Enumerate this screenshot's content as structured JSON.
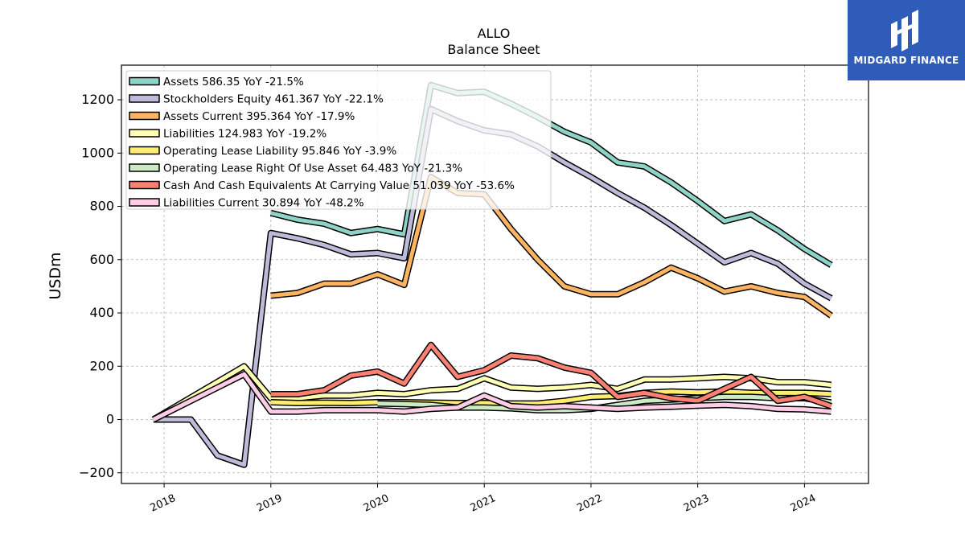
{
  "chart_data": {
    "type": "line",
    "title": "ALLO",
    "subtitle": "Balance  Sheet",
    "xlabel": "",
    "ylabel": "USDm",
    "ylim": [
      -240,
      1330
    ],
    "xlim": [
      2017.6,
      2024.6
    ],
    "yticks": [
      -200,
      0,
      200,
      400,
      600,
      800,
      1000,
      1200
    ],
    "ytick_labels": [
      "−200",
      "0",
      "200",
      "400",
      "600",
      "800",
      "1000",
      "1200"
    ],
    "xticks": [
      2018,
      2019,
      2020,
      2021,
      2022,
      2023,
      2024
    ],
    "xtick_labels": [
      "2018",
      "2019",
      "2020",
      "2021",
      "2022",
      "2023",
      "2024"
    ],
    "grid": true,
    "legend_position": "top-left",
    "series": [
      {
        "name": "Assets  586.35 YoY -21.5%",
        "color": "#8dd3c7",
        "points": [
          [
            2019.0,
            775
          ],
          [
            2019.25,
            750
          ],
          [
            2019.5,
            735
          ],
          [
            2019.75,
            700
          ],
          [
            2020.0,
            715
          ],
          [
            2020.25,
            695
          ],
          [
            2020.5,
            1255
          ],
          [
            2020.75,
            1225
          ],
          [
            2021.0,
            1230
          ],
          [
            2021.25,
            1185
          ],
          [
            2021.5,
            1135
          ],
          [
            2021.75,
            1080
          ],
          [
            2022.0,
            1040
          ],
          [
            2022.25,
            965
          ],
          [
            2022.5,
            950
          ],
          [
            2022.75,
            890
          ],
          [
            2023.0,
            820
          ],
          [
            2023.25,
            745
          ],
          [
            2023.5,
            770
          ],
          [
            2023.75,
            710
          ],
          [
            2024.0,
            640
          ],
          [
            2024.25,
            580
          ]
        ]
      },
      {
        "name": "Stockholders Equity  461.367 YoY -22.1%",
        "color": "#bebada",
        "points": [
          [
            2017.9,
            0
          ],
          [
            2018.0,
            0
          ],
          [
            2018.25,
            0
          ],
          [
            2018.5,
            -135
          ],
          [
            2018.75,
            -170
          ],
          [
            2019.0,
            700
          ],
          [
            2019.25,
            680
          ],
          [
            2019.5,
            655
          ],
          [
            2019.75,
            620
          ],
          [
            2020.0,
            625
          ],
          [
            2020.25,
            605
          ],
          [
            2020.5,
            1165
          ],
          [
            2020.75,
            1120
          ],
          [
            2021.0,
            1085
          ],
          [
            2021.25,
            1070
          ],
          [
            2021.5,
            1025
          ],
          [
            2021.75,
            965
          ],
          [
            2022.0,
            910
          ],
          [
            2022.25,
            850
          ],
          [
            2022.5,
            795
          ],
          [
            2022.75,
            730
          ],
          [
            2023.0,
            660
          ],
          [
            2023.25,
            590
          ],
          [
            2023.5,
            625
          ],
          [
            2023.75,
            585
          ],
          [
            2024.0,
            510
          ],
          [
            2024.25,
            455
          ]
        ]
      },
      {
        "name": "Assets Current  395.364 YoY -17.9%",
        "color": "#fdb462",
        "points": [
          [
            2019.0,
            465
          ],
          [
            2019.25,
            475
          ],
          [
            2019.5,
            510
          ],
          [
            2019.75,
            510
          ],
          [
            2020.0,
            545
          ],
          [
            2020.25,
            505
          ],
          [
            2020.5,
            910
          ],
          [
            2020.75,
            850
          ],
          [
            2021.0,
            845
          ],
          [
            2021.25,
            715
          ],
          [
            2021.5,
            600
          ],
          [
            2021.75,
            500
          ],
          [
            2022.0,
            470
          ],
          [
            2022.25,
            470
          ],
          [
            2022.5,
            515
          ],
          [
            2022.75,
            570
          ],
          [
            2023.0,
            530
          ],
          [
            2023.25,
            480
          ],
          [
            2023.5,
            500
          ],
          [
            2023.75,
            475
          ],
          [
            2024.0,
            460
          ],
          [
            2024.25,
            390
          ]
        ]
      },
      {
        "name": "Liabilities  124.983 YoY -19.2%",
        "color": "#ffffb3",
        "points": [
          [
            2017.9,
            0
          ],
          [
            2018.75,
            200
          ],
          [
            2019.0,
            80
          ],
          [
            2019.25,
            80
          ],
          [
            2019.5,
            90
          ],
          [
            2019.75,
            90
          ],
          [
            2020.0,
            100
          ],
          [
            2020.25,
            95
          ],
          [
            2020.5,
            110
          ],
          [
            2020.75,
            115
          ],
          [
            2021.0,
            155
          ],
          [
            2021.25,
            120
          ],
          [
            2021.5,
            115
          ],
          [
            2021.75,
            120
          ],
          [
            2022.0,
            130
          ],
          [
            2022.25,
            115
          ],
          [
            2022.5,
            150
          ],
          [
            2022.75,
            150
          ],
          [
            2023.0,
            155
          ],
          [
            2023.25,
            160
          ],
          [
            2023.5,
            155
          ],
          [
            2023.75,
            140
          ],
          [
            2024.0,
            140
          ],
          [
            2024.25,
            130
          ]
        ]
      },
      {
        "name": "Operating Lease Liability  95.846 YoY -3.9%",
        "color": "#ffed6f",
        "points": [
          [
            2019.0,
            65
          ],
          [
            2019.25,
            62
          ],
          [
            2019.5,
            63
          ],
          [
            2019.75,
            62
          ],
          [
            2020.0,
            65
          ],
          [
            2020.25,
            65
          ],
          [
            2020.5,
            63
          ],
          [
            2020.75,
            62
          ],
          [
            2021.0,
            62
          ],
          [
            2021.25,
            60
          ],
          [
            2021.5,
            60
          ],
          [
            2021.75,
            70
          ],
          [
            2022.0,
            85
          ],
          [
            2022.25,
            88
          ],
          [
            2022.5,
            100
          ],
          [
            2022.75,
            105
          ],
          [
            2023.0,
            102
          ],
          [
            2023.25,
            105
          ],
          [
            2023.5,
            100
          ],
          [
            2023.75,
            100
          ],
          [
            2024.0,
            100
          ],
          [
            2024.25,
            96
          ]
        ]
      },
      {
        "name": "Operating Lease Right Of Use Asset  64.483 YoY -21.3%",
        "color": "#ccebc5",
        "points": [
          [
            2020.0,
            60
          ],
          [
            2020.25,
            58
          ],
          [
            2020.5,
            55
          ],
          [
            2020.75,
            45
          ],
          [
            2021.0,
            45
          ],
          [
            2021.25,
            42
          ],
          [
            2021.5,
            35
          ],
          [
            2021.75,
            35
          ],
          [
            2022.0,
            40
          ],
          [
            2022.25,
            55
          ],
          [
            2022.5,
            70
          ],
          [
            2022.75,
            75
          ],
          [
            2023.0,
            80
          ],
          [
            2023.25,
            85
          ],
          [
            2023.5,
            85
          ],
          [
            2023.75,
            80
          ],
          [
            2024.0,
            80
          ],
          [
            2024.25,
            64
          ]
        ]
      },
      {
        "name": "Cash And Cash Equivalents At Carrying Value  51.039 YoY -53.6%",
        "color": "#fb8072",
        "points": [
          [
            2019.0,
            95
          ],
          [
            2019.25,
            95
          ],
          [
            2019.5,
            110
          ],
          [
            2019.75,
            165
          ],
          [
            2020.0,
            180
          ],
          [
            2020.25,
            135
          ],
          [
            2020.5,
            280
          ],
          [
            2020.75,
            160
          ],
          [
            2021.0,
            185
          ],
          [
            2021.25,
            240
          ],
          [
            2021.5,
            230
          ],
          [
            2021.75,
            195
          ],
          [
            2022.0,
            175
          ],
          [
            2022.25,
            85
          ],
          [
            2022.5,
            100
          ],
          [
            2022.75,
            80
          ],
          [
            2023.0,
            70
          ],
          [
            2023.25,
            115
          ],
          [
            2023.5,
            160
          ],
          [
            2023.75,
            70
          ],
          [
            2024.0,
            85
          ],
          [
            2024.25,
            50
          ]
        ]
      },
      {
        "name": "Liabilities Current  30.894 YoY -48.2%",
        "color": "#fccde5",
        "points": [
          [
            2017.9,
            0
          ],
          [
            2018.75,
            170
          ],
          [
            2019.0,
            30
          ],
          [
            2019.25,
            30
          ],
          [
            2019.5,
            35
          ],
          [
            2019.75,
            35
          ],
          [
            2020.0,
            35
          ],
          [
            2020.25,
            30
          ],
          [
            2020.5,
            40
          ],
          [
            2020.75,
            45
          ],
          [
            2021.0,
            90
          ],
          [
            2021.25,
            50
          ],
          [
            2021.5,
            45
          ],
          [
            2021.75,
            50
          ],
          [
            2022.0,
            45
          ],
          [
            2022.25,
            40
          ],
          [
            2022.5,
            45
          ],
          [
            2022.75,
            48
          ],
          [
            2023.0,
            52
          ],
          [
            2023.25,
            55
          ],
          [
            2023.5,
            50
          ],
          [
            2023.75,
            40
          ],
          [
            2024.0,
            38
          ],
          [
            2024.25,
            30
          ]
        ]
      }
    ]
  },
  "logo": {
    "text": "MIDGARD FINANCE",
    "color": "#2f5cb8"
  }
}
